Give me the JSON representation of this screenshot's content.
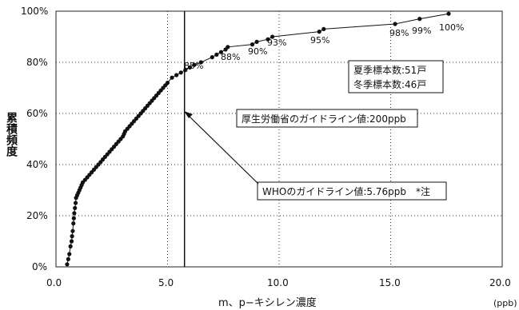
{
  "chart_data": {
    "type": "scatter",
    "title": "",
    "xlabel": "m、p−キシレン濃度",
    "xunit": "(ppb)",
    "ylabel": "累積頻度",
    "xlim": [
      0,
      20
    ],
    "ylim": [
      0,
      100
    ],
    "x_ticks": [
      "0.0",
      "5.0",
      "10.0",
      "15.0",
      "20.0"
    ],
    "y_ticks": [
      "0%",
      "20%",
      "40%",
      "60%",
      "80%",
      "100%"
    ],
    "grid": "dotted",
    "series": [
      {
        "name": "",
        "x": [
          0.5,
          0.55,
          0.6,
          0.65,
          0.7,
          0.72,
          0.75,
          0.78,
          0.8,
          0.82,
          0.85,
          0.88,
          0.9,
          0.95,
          1.0,
          1.05,
          1.1,
          1.15,
          1.2,
          1.3,
          1.4,
          1.5,
          1.6,
          1.7,
          1.8,
          1.9,
          2.0,
          2.1,
          2.2,
          2.3,
          2.4,
          2.5,
          2.6,
          2.7,
          2.8,
          2.9,
          3.0,
          3.05,
          3.1,
          3.2,
          3.3,
          3.4,
          3.5,
          3.6,
          3.7,
          3.8,
          3.9,
          4.0,
          4.1,
          4.2,
          4.3,
          4.4,
          4.5,
          4.6,
          4.7,
          4.8,
          4.9,
          5.0,
          5.2,
          5.4,
          5.6,
          5.8,
          6.0,
          6.2,
          6.5,
          7.0,
          7.2,
          7.4,
          7.6,
          7.7,
          8.8,
          9.0,
          9.5,
          9.7,
          11.8,
          12.0,
          15.2,
          16.3,
          17.6
        ],
        "y": [
          1,
          3,
          5,
          8,
          10,
          12,
          14,
          17,
          19,
          21,
          23,
          25,
          27,
          28,
          29,
          30,
          31,
          32,
          33,
          34,
          35,
          36,
          37,
          38,
          39,
          40,
          41,
          42,
          43,
          44,
          45,
          46,
          47,
          48,
          49,
          50,
          51,
          52,
          53,
          54,
          55,
          56,
          57,
          58,
          59,
          60,
          61,
          62,
          63,
          64,
          65,
          66,
          67,
          68,
          69,
          70,
          71,
          72,
          74,
          75,
          76,
          77,
          78,
          79,
          80,
          82,
          83,
          84,
          85,
          86,
          87,
          88,
          89,
          90,
          92,
          93,
          95,
          97,
          99
        ]
      }
    ],
    "point_labels": [
      "85%",
      "88%",
      "90%",
      "93%",
      "95%",
      "98%",
      "99%",
      "100%"
    ],
    "vline": {
      "x": 5.76
    },
    "annotations": {
      "sample_summer": "夏季標本数:51戸",
      "sample_winter": "冬季標本数:46戸",
      "mhlw_guideline": "厚生労働省のガイドライン値:200ppb",
      "who_guideline": "WHOのガイドライン値:5.76ppb　*注"
    }
  }
}
